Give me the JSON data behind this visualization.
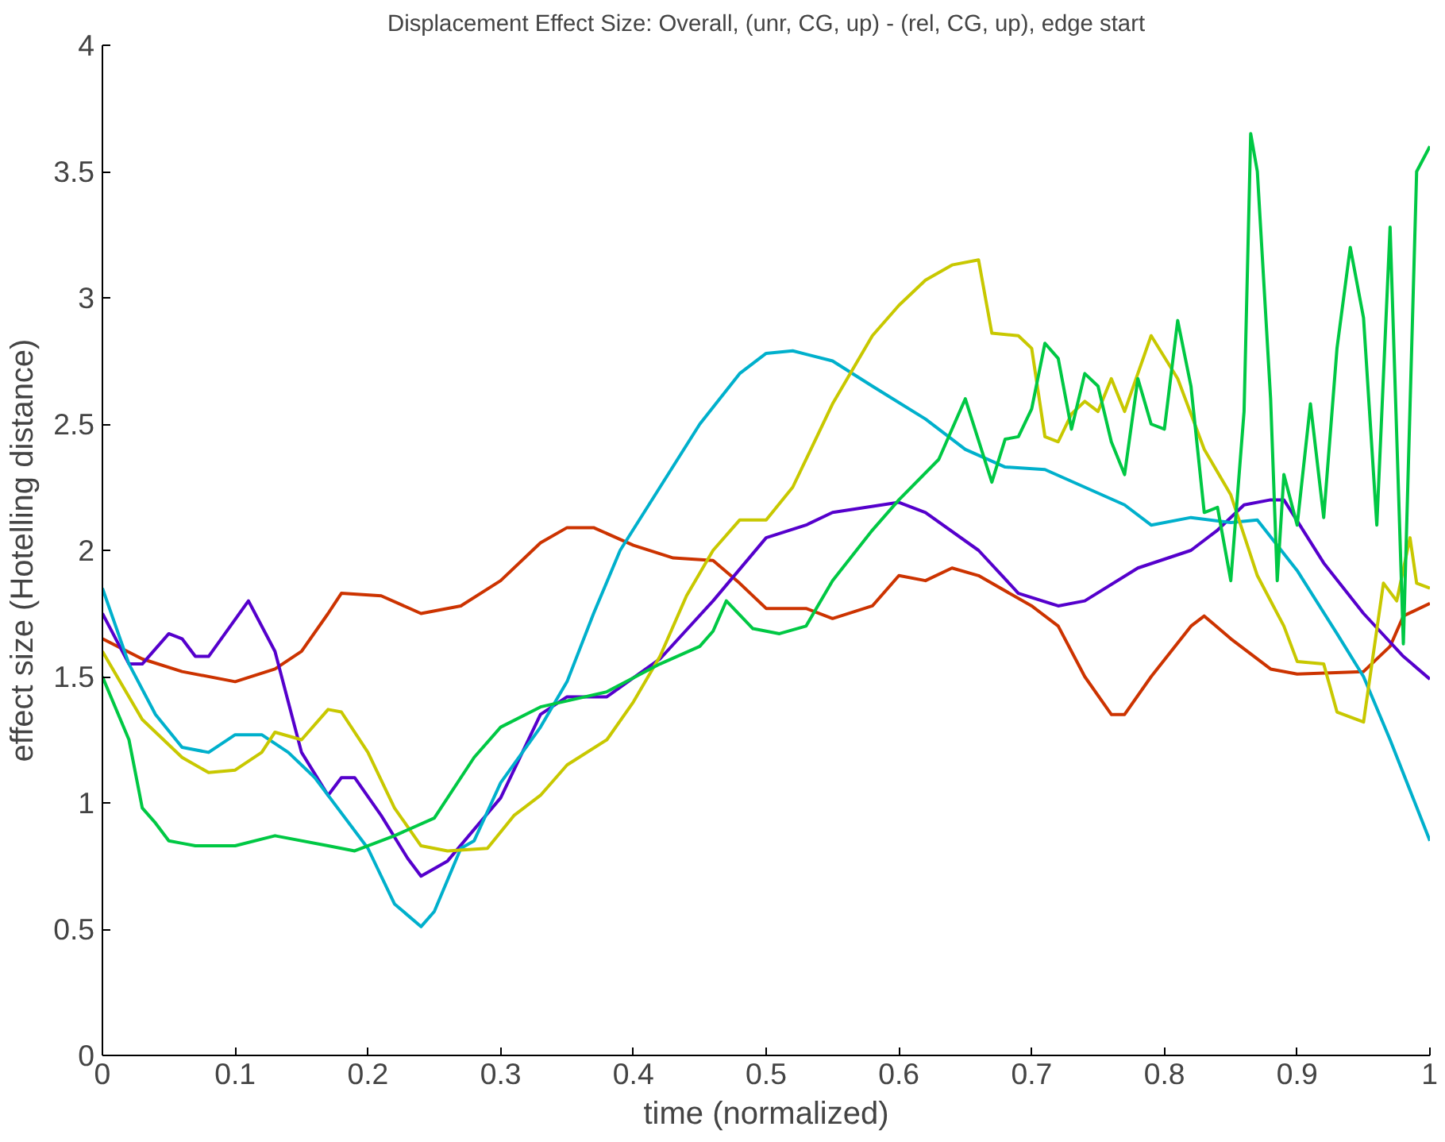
{
  "chart_data": {
    "type": "line",
    "title": "Displacement Effect Size: Overall, (unr, CG, up) - (rel, CG, up), edge start",
    "xlabel": "time (normalized)",
    "ylabel": "effect size (Hotelling distance)",
    "xlim": [
      0,
      1
    ],
    "ylim": [
      0,
      4
    ],
    "xticks": [
      0,
      0.1,
      0.2,
      0.3,
      0.4,
      0.5,
      0.6,
      0.7,
      0.8,
      0.9,
      1
    ],
    "yticks": [
      0,
      0.5,
      1,
      1.5,
      2,
      2.5,
      3,
      3.5,
      4
    ],
    "grid": false,
    "marker": "none",
    "line_style": "solid",
    "series": [
      {
        "color": "#cc3300",
        "x": [
          0,
          0.03,
          0.06,
          0.1,
          0.13,
          0.15,
          0.17,
          0.18,
          0.21,
          0.24,
          0.27,
          0.3,
          0.33,
          0.35,
          0.37,
          0.4,
          0.43,
          0.46,
          0.48,
          0.5,
          0.53,
          0.55,
          0.58,
          0.6,
          0.62,
          0.64,
          0.66,
          0.7,
          0.72,
          0.74,
          0.76,
          0.77,
          0.79,
          0.82,
          0.83,
          0.85,
          0.88,
          0.9,
          0.95,
          0.97,
          0.98,
          1.0
        ],
        "values": [
          1.65,
          1.57,
          1.52,
          1.48,
          1.53,
          1.6,
          1.75,
          1.83,
          1.82,
          1.75,
          1.78,
          1.88,
          2.03,
          2.09,
          2.09,
          2.02,
          1.97,
          1.96,
          1.87,
          1.77,
          1.77,
          1.73,
          1.78,
          1.9,
          1.88,
          1.93,
          1.9,
          1.78,
          1.7,
          1.5,
          1.35,
          1.35,
          1.5,
          1.7,
          1.74,
          1.65,
          1.53,
          1.51,
          1.52,
          1.62,
          1.74,
          1.79
        ]
      },
      {
        "color": "#5500cc",
        "x": [
          0,
          0.02,
          0.03,
          0.05,
          0.06,
          0.07,
          0.08,
          0.11,
          0.13,
          0.15,
          0.17,
          0.18,
          0.19,
          0.21,
          0.23,
          0.24,
          0.26,
          0.3,
          0.33,
          0.35,
          0.38,
          0.42,
          0.46,
          0.5,
          0.53,
          0.55,
          0.6,
          0.62,
          0.66,
          0.69,
          0.72,
          0.74,
          0.78,
          0.82,
          0.84,
          0.86,
          0.88,
          0.89,
          0.92,
          0.95,
          0.98,
          1.0
        ],
        "values": [
          1.75,
          1.55,
          1.55,
          1.67,
          1.65,
          1.58,
          1.58,
          1.8,
          1.6,
          1.2,
          1.03,
          1.1,
          1.1,
          0.95,
          0.78,
          0.71,
          0.77,
          1.02,
          1.35,
          1.42,
          1.42,
          1.57,
          1.8,
          2.05,
          2.1,
          2.15,
          2.19,
          2.15,
          2.0,
          1.83,
          1.78,
          1.8,
          1.93,
          2.0,
          2.08,
          2.18,
          2.2,
          2.2,
          1.95,
          1.75,
          1.58,
          1.49
        ]
      },
      {
        "color": "#00b0cc",
        "x": [
          0,
          0.02,
          0.04,
          0.06,
          0.08,
          0.1,
          0.12,
          0.14,
          0.16,
          0.2,
          0.22,
          0.24,
          0.25,
          0.27,
          0.28,
          0.3,
          0.33,
          0.35,
          0.37,
          0.39,
          0.42,
          0.45,
          0.48,
          0.5,
          0.52,
          0.55,
          0.58,
          0.62,
          0.65,
          0.68,
          0.71,
          0.74,
          0.77,
          0.79,
          0.82,
          0.85,
          0.87,
          0.9,
          0.93,
          0.95,
          0.97,
          1.0
        ],
        "values": [
          1.85,
          1.55,
          1.35,
          1.22,
          1.2,
          1.27,
          1.27,
          1.2,
          1.1,
          0.82,
          0.6,
          0.51,
          0.57,
          0.82,
          0.85,
          1.08,
          1.3,
          1.48,
          1.75,
          2.0,
          2.25,
          2.5,
          2.7,
          2.78,
          2.79,
          2.75,
          2.65,
          2.52,
          2.4,
          2.33,
          2.32,
          2.25,
          2.18,
          2.1,
          2.13,
          2.11,
          2.12,
          1.92,
          1.67,
          1.5,
          1.25,
          0.85
        ]
      },
      {
        "color": "#c8c800",
        "x": [
          0,
          0.03,
          0.06,
          0.08,
          0.1,
          0.12,
          0.13,
          0.15,
          0.17,
          0.18,
          0.2,
          0.22,
          0.24,
          0.26,
          0.29,
          0.31,
          0.33,
          0.35,
          0.38,
          0.4,
          0.42,
          0.44,
          0.46,
          0.48,
          0.5,
          0.52,
          0.55,
          0.58,
          0.6,
          0.62,
          0.64,
          0.66,
          0.67,
          0.69,
          0.7,
          0.71,
          0.72,
          0.73,
          0.74,
          0.75,
          0.76,
          0.77,
          0.79,
          0.81,
          0.83,
          0.85,
          0.87,
          0.89,
          0.9,
          0.92,
          0.93,
          0.94,
          0.95,
          0.965,
          0.975,
          0.985,
          0.99,
          1.0
        ],
        "values": [
          1.6,
          1.33,
          1.18,
          1.12,
          1.13,
          1.2,
          1.28,
          1.25,
          1.37,
          1.36,
          1.2,
          0.98,
          0.83,
          0.81,
          0.82,
          0.95,
          1.03,
          1.15,
          1.25,
          1.4,
          1.58,
          1.82,
          2.0,
          2.12,
          2.12,
          2.25,
          2.58,
          2.85,
          2.97,
          3.07,
          3.13,
          3.15,
          2.86,
          2.85,
          2.8,
          2.45,
          2.43,
          2.54,
          2.59,
          2.55,
          2.68,
          2.55,
          2.85,
          2.68,
          2.4,
          2.22,
          1.9,
          1.7,
          1.56,
          1.55,
          1.36,
          1.34,
          1.32,
          1.87,
          1.8,
          2.05,
          1.87,
          1.85
        ]
      },
      {
        "color": "#00c844",
        "x": [
          0,
          0.02,
          0.03,
          0.04,
          0.05,
          0.06,
          0.07,
          0.1,
          0.13,
          0.17,
          0.19,
          0.22,
          0.25,
          0.28,
          0.3,
          0.33,
          0.38,
          0.42,
          0.45,
          0.46,
          0.47,
          0.49,
          0.51,
          0.53,
          0.55,
          0.58,
          0.6,
          0.63,
          0.65,
          0.67,
          0.68,
          0.69,
          0.7,
          0.71,
          0.72,
          0.73,
          0.74,
          0.75,
          0.76,
          0.77,
          0.78,
          0.79,
          0.8,
          0.81,
          0.82,
          0.83,
          0.84,
          0.85,
          0.86,
          0.865,
          0.87,
          0.88,
          0.885,
          0.89,
          0.9,
          0.91,
          0.92,
          0.93,
          0.94,
          0.95,
          0.96,
          0.97,
          0.98,
          0.99,
          1.0
        ],
        "values": [
          1.5,
          1.25,
          0.98,
          0.92,
          0.85,
          0.84,
          0.83,
          0.83,
          0.87,
          0.83,
          0.81,
          0.87,
          0.94,
          1.18,
          1.3,
          1.38,
          1.44,
          1.55,
          1.62,
          1.68,
          1.8,
          1.69,
          1.67,
          1.7,
          1.88,
          2.08,
          2.2,
          2.36,
          2.6,
          2.27,
          2.44,
          2.45,
          2.56,
          2.82,
          2.76,
          2.48,
          2.7,
          2.65,
          2.43,
          2.3,
          2.68,
          2.5,
          2.48,
          2.91,
          2.65,
          2.15,
          2.17,
          1.88,
          2.55,
          3.65,
          3.5,
          2.6,
          1.88,
          2.3,
          2.1,
          2.58,
          2.13,
          2.8,
          3.2,
          2.92,
          2.1,
          3.28,
          1.63,
          3.5,
          3.6
        ]
      }
    ]
  }
}
